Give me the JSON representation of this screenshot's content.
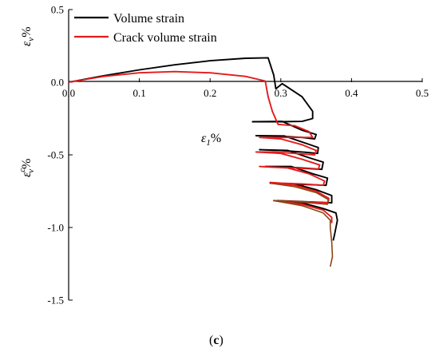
{
  "chart_data": {
    "type": "line",
    "xlabel_symbol": "ε",
    "xlabel_sub": "1",
    "xlabel_unit": "%",
    "ylabel_top_symbol": "ε",
    "ylabel_top_sub": "v",
    "ylabel_top_unit": "%",
    "ylabel_bottom_symbol": "ε",
    "ylabel_bottom_sup": "c",
    "ylabel_bottom_sub": "v",
    "ylabel_bottom_unit": "%",
    "panel_open": "(",
    "panel_letter": "c",
    "panel_close": ")",
    "xlim": [
      0,
      0.5
    ],
    "ylim": [
      -1.5,
      0.5
    ],
    "xticks": [
      "0.0",
      "0.1",
      "0.2",
      "0.3",
      "0.4",
      "0.5"
    ],
    "xtick_values": [
      0,
      0.1,
      0.2,
      0.3,
      0.4,
      0.5
    ],
    "yticks": [
      "0.5",
      "0.0",
      "-0.5",
      "-1.0",
      "-1.5"
    ],
    "ytick_values": [
      0.5,
      0,
      -0.5,
      -1.0,
      -1.5
    ],
    "legend": {
      "position": "top-left"
    },
    "series": [
      {
        "name": "Volume strain",
        "color": "#000000",
        "points": [
          [
            0,
            0
          ],
          [
            0.05,
            0.045
          ],
          [
            0.1,
            0.085
          ],
          [
            0.15,
            0.12
          ],
          [
            0.2,
            0.148
          ],
          [
            0.25,
            0.165
          ],
          [
            0.282,
            0.168
          ],
          [
            0.29,
            0.05
          ],
          [
            0.293,
            -0.045
          ],
          [
            0.302,
            -0.01
          ],
          [
            0.33,
            -0.1
          ],
          [
            0.345,
            -0.2
          ],
          [
            0.345,
            -0.25
          ],
          [
            0.33,
            -0.27
          ],
          [
            0.3,
            -0.272
          ],
          [
            0.26,
            -0.272
          ],
          [
            0.302,
            -0.27
          ],
          [
            0.33,
            -0.33
          ],
          [
            0.35,
            -0.36
          ],
          [
            0.348,
            -0.39
          ],
          [
            0.33,
            -0.38
          ],
          [
            0.3,
            -0.372
          ],
          [
            0.265,
            -0.368
          ],
          [
            0.305,
            -0.37
          ],
          [
            0.335,
            -0.42
          ],
          [
            0.353,
            -0.45
          ],
          [
            0.352,
            -0.49
          ],
          [
            0.33,
            -0.48
          ],
          [
            0.3,
            -0.47
          ],
          [
            0.27,
            -0.465
          ],
          [
            0.31,
            -0.47
          ],
          [
            0.34,
            -0.52
          ],
          [
            0.36,
            -0.55
          ],
          [
            0.358,
            -0.6
          ],
          [
            0.33,
            -0.59
          ],
          [
            0.3,
            -0.582
          ],
          [
            0.278,
            -0.58
          ],
          [
            0.315,
            -0.58
          ],
          [
            0.345,
            -0.63
          ],
          [
            0.366,
            -0.66
          ],
          [
            0.364,
            -0.71
          ],
          [
            0.34,
            -0.705
          ],
          [
            0.31,
            -0.7
          ],
          [
            0.285,
            -0.695
          ],
          [
            0.32,
            -0.7
          ],
          [
            0.35,
            -0.74
          ],
          [
            0.372,
            -0.78
          ],
          [
            0.372,
            -0.83
          ],
          [
            0.345,
            -0.825
          ],
          [
            0.32,
            -0.82
          ],
          [
            0.295,
            -0.815
          ],
          [
            0.33,
            -0.83
          ],
          [
            0.36,
            -0.87
          ],
          [
            0.378,
            -0.9
          ],
          [
            0.38,
            -0.95
          ],
          [
            0.378,
            -1.0
          ],
          [
            0.376,
            -1.05
          ],
          [
            0.374,
            -1.09
          ]
        ]
      },
      {
        "name": "Crack volume strain",
        "color": "#e41a1c",
        "points": [
          [
            0,
            0
          ],
          [
            0.05,
            0.04
          ],
          [
            0.1,
            0.065
          ],
          [
            0.15,
            0.073
          ],
          [
            0.2,
            0.065
          ],
          [
            0.25,
            0.04
          ],
          [
            0.278,
            0.008
          ],
          [
            0.282,
            -0.1
          ],
          [
            0.288,
            -0.2
          ],
          [
            0.296,
            -0.29
          ],
          [
            0.32,
            -0.3
          ],
          [
            0.34,
            -0.34
          ],
          [
            0.345,
            -0.38
          ],
          [
            0.33,
            -0.38
          ],
          [
            0.3,
            -0.38
          ],
          [
            0.27,
            -0.38
          ],
          [
            0.3,
            -0.39
          ],
          [
            0.33,
            -0.43
          ],
          [
            0.35,
            -0.47
          ],
          [
            0.348,
            -0.5
          ],
          [
            0.32,
            -0.49
          ],
          [
            0.29,
            -0.48
          ],
          [
            0.265,
            -0.48
          ],
          [
            0.3,
            -0.49
          ],
          [
            0.33,
            -0.53
          ],
          [
            0.355,
            -0.57
          ],
          [
            0.353,
            -0.6
          ],
          [
            0.32,
            -0.59
          ],
          [
            0.29,
            -0.585
          ],
          [
            0.27,
            -0.58
          ],
          [
            0.31,
            -0.59
          ],
          [
            0.34,
            -0.63
          ],
          [
            0.362,
            -0.68
          ],
          [
            0.36,
            -0.71
          ],
          [
            0.33,
            -0.7
          ],
          [
            0.3,
            -0.695
          ],
          [
            0.285,
            -0.69
          ],
          [
            0.32,
            -0.71
          ],
          [
            0.35,
            -0.75
          ],
          [
            0.368,
            -0.8
          ],
          [
            0.366,
            -0.83
          ],
          [
            0.34,
            -0.825
          ],
          [
            0.31,
            -0.82
          ],
          [
            0.29,
            -0.815
          ],
          [
            0.33,
            -0.84
          ],
          [
            0.36,
            -0.88
          ],
          [
            0.372,
            -0.93
          ],
          [
            0.372,
            -0.97
          ]
        ]
      },
      {
        "color": "#8b4513",
        "points": [
          [
            0.285,
            -0.695
          ],
          [
            0.32,
            -0.72
          ],
          [
            0.35,
            -0.76
          ],
          [
            0.368,
            -0.81
          ],
          [
            0.366,
            -0.84
          ],
          [
            0.34,
            -0.83
          ],
          [
            0.31,
            -0.82
          ],
          [
            0.29,
            -0.815
          ],
          [
            0.33,
            -0.85
          ],
          [
            0.36,
            -0.9
          ],
          [
            0.37,
            -0.95
          ],
          [
            0.37,
            -1.0
          ],
          [
            0.372,
            -1.1
          ],
          [
            0.373,
            -1.2
          ],
          [
            0.37,
            -1.27
          ]
        ]
      }
    ]
  }
}
